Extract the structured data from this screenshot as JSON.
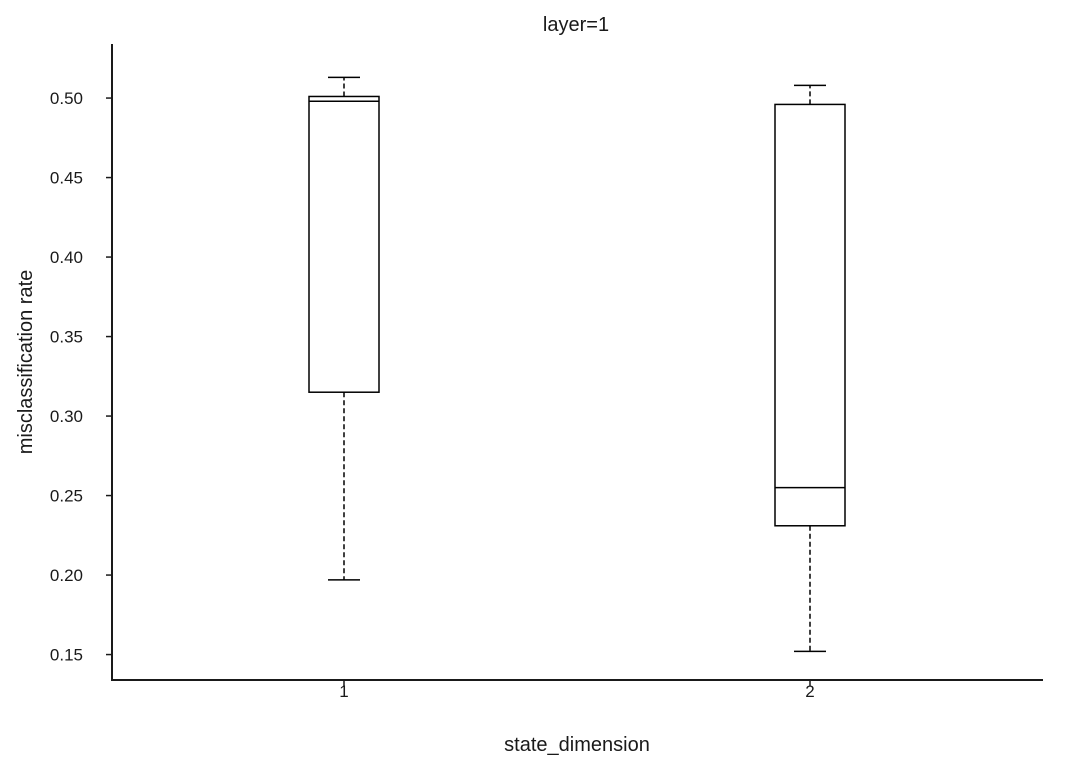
{
  "chart_data": {
    "type": "box",
    "title": "layer=1",
    "xlabel": "state_dimension",
    "ylabel": "misclassification rate",
    "ylim": [
      0.134,
      0.534
    ],
    "yticks": [
      0.15,
      0.2,
      0.25,
      0.3,
      0.35,
      0.4,
      0.45,
      0.5
    ],
    "ytick_labels": [
      "0.15",
      "0.20",
      "0.25",
      "0.30",
      "0.35",
      "0.40",
      "0.45",
      "0.50"
    ],
    "categories": [
      "1",
      "2"
    ],
    "boxes": [
      {
        "category": "1",
        "whisker_low": 0.197,
        "q1": 0.315,
        "median": 0.498,
        "q3": 0.501,
        "whisker_high": 0.513
      },
      {
        "category": "2",
        "whisker_low": 0.152,
        "q1": 0.231,
        "median": 0.255,
        "q3": 0.496,
        "whisker_high": 0.508
      }
    ],
    "grid": false
  }
}
